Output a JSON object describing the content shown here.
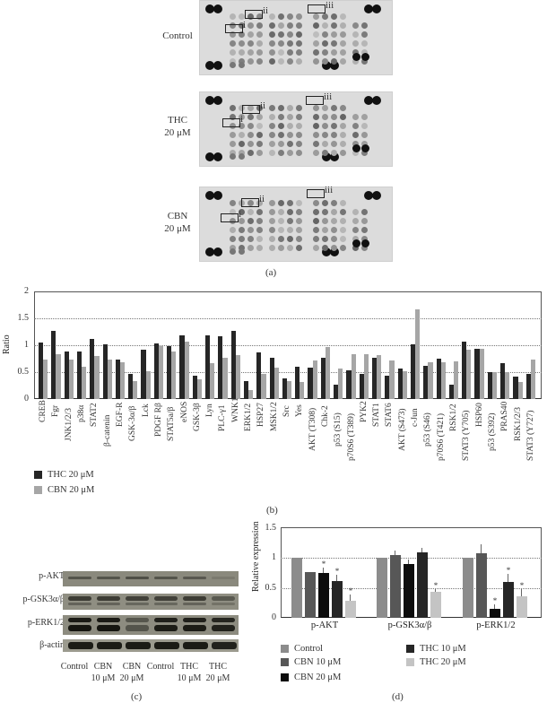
{
  "panel_a": {
    "label": "(a)",
    "blots": [
      {
        "condition": "Control",
        "condition_line2": ""
      },
      {
        "condition": "THC",
        "condition_line2": "20 μM"
      },
      {
        "condition": "CBN",
        "condition_line2": "20 μM"
      }
    ],
    "box_labels": [
      "i",
      "ii",
      "iii"
    ]
  },
  "panel_b": {
    "label": "(b)",
    "legend": [
      "THC 20 μM",
      "CBN 20 μM"
    ]
  },
  "panel_c": {
    "label": "(c)",
    "rows": [
      "p-AKT",
      "p-GSK3α/β",
      "p-ERK1/2",
      "β-actin"
    ],
    "lanes": [
      {
        "line1": "Control",
        "line2": ""
      },
      {
        "line1": "CBN",
        "line2": "10 μM"
      },
      {
        "line1": "CBN",
        "line2": "20 μM"
      },
      {
        "line1": "Control",
        "line2": ""
      },
      {
        "line1": "THC",
        "line2": "10 μM"
      },
      {
        "line1": "THC",
        "line2": "20 μM"
      }
    ]
  },
  "panel_d": {
    "label": "(d)",
    "legend": [
      "Control",
      "CBN 10 μM",
      "CBN 20 μM",
      "THC 10 μM",
      "THC 20 μM"
    ]
  },
  "colors": {
    "thc20_b": "#262626",
    "cbn20_b": "#a6a6a6",
    "control": "#8c8c8c",
    "cbn10": "#575757",
    "cbn20": "#0d0d0d",
    "thc10": "#262626",
    "thc20": "#c4c4c4"
  },
  "chart_data": [
    {
      "type": "bar",
      "title": "",
      "xlabel": "",
      "ylabel": "Ratio",
      "ylim": [
        0,
        2
      ],
      "yticks": [
        0,
        0.5,
        1,
        1.5,
        2
      ],
      "grid": "dotted horizontal at 0.5, 1, 1.5",
      "legend_position": "bottom-left",
      "categories": [
        "CREB",
        "Fgr",
        "JNK1/2/3",
        "p38α",
        "STAT2",
        "β-catenin",
        "EGF-R",
        "GSK-3α/β",
        "Lck",
        "PDGF Rβ",
        "STAT5a/β",
        "eNOS",
        "GSK-3β",
        "Lyn",
        "PLC-γ1",
        "WNK1",
        "ERK1/2",
        "HSP27",
        "MSK1/2",
        "Src",
        "Yes",
        "AKT (T308)",
        "Chk-2",
        "p53 (S15)",
        "p70S6 (T389)",
        "PYK2",
        "STAT1",
        "STAT6",
        "AKT (S473)",
        "c-Jun",
        "p53 (S46)",
        "p70S6 (T421)",
        "RSK1/2",
        "STAT3 (Y705)",
        "HSP60",
        "p53 (S392)",
        "PRAS40",
        "RSK1/2/3",
        "STAT3 (Y727)"
      ],
      "series": [
        {
          "name": "THC 20 μM",
          "values": [
            1.05,
            1.27,
            0.89,
            0.89,
            1.11,
            1.01,
            0.73,
            0.47,
            0.92,
            1.04,
            0.98,
            1.18,
            0.44,
            1.18,
            1.17,
            1.26,
            0.33,
            0.86,
            0.77,
            0.39,
            0.6,
            0.59,
            0.76,
            0.27,
            0.53,
            0.47,
            0.76,
            0.43,
            0.57,
            1.02,
            0.61,
            0.75,
            0.27,
            1.07,
            0.93,
            0.5,
            0.67,
            0.42,
            0.46
          ]
        },
        {
          "name": "CBN 20 μM",
          "values": [
            0.74,
            0.83,
            0.73,
            0.6,
            0.8,
            0.73,
            0.68,
            0.33,
            0.52,
            0.98,
            0.89,
            1.06,
            0.36,
            0.66,
            0.77,
            0.82,
            0.16,
            0.47,
            0.59,
            0.33,
            0.32,
            0.71,
            0.97,
            0.56,
            0.83,
            0.84,
            0.82,
            0.71,
            0.51,
            1.67,
            0.69,
            0.69,
            0.7,
            0.91,
            0.93,
            0.5,
            0.5,
            0.32,
            0.73
          ]
        }
      ]
    },
    {
      "type": "bar",
      "title": "",
      "xlabel": "",
      "ylabel": "Relative expression",
      "ylim": [
        0,
        1.5
      ],
      "yticks": [
        0,
        0.5,
        1,
        1.5
      ],
      "grid": "dotted horizontal at 0.5, 1",
      "legend_position": "bottom",
      "categories": [
        "p-AKT",
        "p-GSK3α/β",
        "p-ERK1/2"
      ],
      "series": [
        {
          "name": "Control",
          "values": [
            1.0,
            1.0,
            1.0
          ],
          "errors": [
            0,
            0,
            0
          ],
          "significant": [
            false,
            false,
            false
          ]
        },
        {
          "name": "CBN 10 μM",
          "values": [
            0.76,
            1.04,
            1.07
          ],
          "errors": [
            0,
            0.08,
            0.15
          ],
          "significant": [
            false,
            false,
            false
          ]
        },
        {
          "name": "CBN 20 μM",
          "values": [
            0.75,
            0.9,
            0.15
          ],
          "errors": [
            0.08,
            0.07,
            0.07
          ],
          "significant": [
            true,
            false,
            true
          ]
        },
        {
          "name": "THC 10 μM",
          "values": [
            0.61,
            1.09,
            0.6
          ],
          "errors": [
            0.1,
            0.07,
            0.13
          ],
          "significant": [
            true,
            false,
            true
          ]
        },
        {
          "name": "THC 20 μM",
          "values": [
            0.28,
            0.44,
            0.36
          ],
          "errors": [
            0.11,
            0.04,
            0.12
          ],
          "significant": [
            true,
            true,
            true
          ]
        }
      ],
      "annotations": [
        "* significance markers above bars"
      ]
    }
  ]
}
